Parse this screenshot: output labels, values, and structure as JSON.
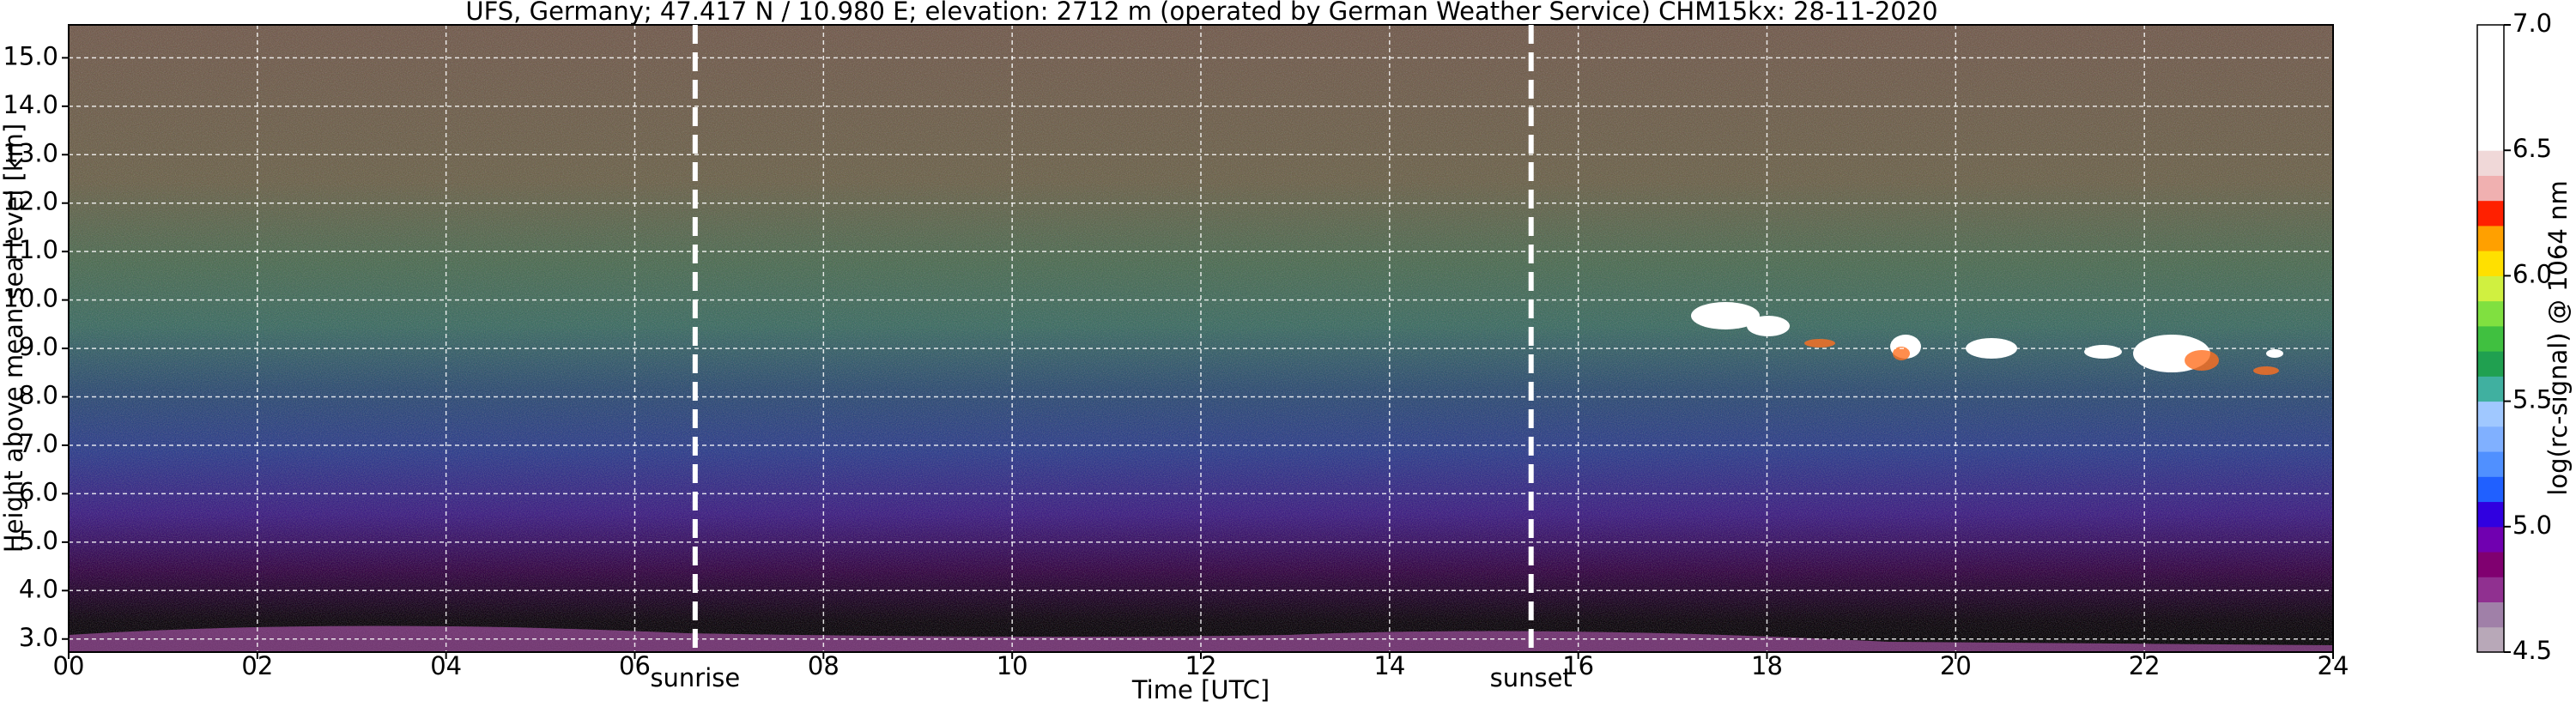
{
  "chart_data": {
    "type": "lidar",
    "title": "UFS, Germany; 47.417 N / 10.980 E; elevation: 2712 m  (operated by German Weather Service)    CHM15kx: 28-11-2020",
    "xlabel": "Time [UTC]",
    "ylabel": "Height above mean sea level [km]",
    "xlim": [
      0,
      24
    ],
    "xticks": [
      {
        "value": 0,
        "label": "00"
      },
      {
        "value": 2,
        "label": "02"
      },
      {
        "value": 4,
        "label": "04"
      },
      {
        "value": 6,
        "label": "06"
      },
      {
        "value": 8,
        "label": "08"
      },
      {
        "value": 10,
        "label": "10"
      },
      {
        "value": 12,
        "label": "12"
      },
      {
        "value": 14,
        "label": "14"
      },
      {
        "value": 16,
        "label": "16"
      },
      {
        "value": 18,
        "label": "18"
      },
      {
        "value": 20,
        "label": "20"
      },
      {
        "value": 22,
        "label": "22"
      },
      {
        "value": 24,
        "label": "24"
      }
    ],
    "ylim": [
      2.73,
      15.68
    ],
    "yticks": [
      {
        "value": 3,
        "label": "3.0"
      },
      {
        "value": 4,
        "label": "4.0"
      },
      {
        "value": 5,
        "label": "5.0"
      },
      {
        "value": 6,
        "label": "6.0"
      },
      {
        "value": 7,
        "label": "7.0"
      },
      {
        "value": 8,
        "label": "8.0"
      },
      {
        "value": 9,
        "label": "9.0"
      },
      {
        "value": 10,
        "label": "10.0"
      },
      {
        "value": 11,
        "label": "11.0"
      },
      {
        "value": 12,
        "label": "12.0"
      },
      {
        "value": 13,
        "label": "13.0"
      },
      {
        "value": 14,
        "label": "14.0"
      },
      {
        "value": 15,
        "label": "15.0"
      }
    ],
    "grid": true,
    "annotations": [
      {
        "x": 6.64,
        "label": "sunrise"
      },
      {
        "x": 15.5,
        "label": "sunset"
      }
    ],
    "colorbar": {
      "label": "log(rc-signal) @ 1064 nm",
      "clim": [
        4.5,
        7.0
      ],
      "ticks": [
        4.5,
        {
          "value": 5.0,
          "label": "5.0"
        },
        5.5,
        {
          "value": 6.0,
          "label": "6.0"
        },
        6.5,
        {
          "value": 7.0,
          "label": "7.0"
        }
      ],
      "colors": [
        "#b8a8b8",
        "#a080a8",
        "#903090",
        "#800070",
        "#7000b0",
        "#3000e0",
        "#2060ff",
        "#5090ff",
        "#80b0ff",
        "#a0c8ff",
        "#40b0a0",
        "#20a050",
        "#40c040",
        "#80e040",
        "#d0f040",
        "#ffe000",
        "#ffa000",
        "#ff2000",
        "#f0b0b0",
        "#f0d8d8",
        "#ffffff",
        "#ffffff",
        "#ffffff",
        "#ffffff",
        "#ffffff"
      ]
    }
  }
}
